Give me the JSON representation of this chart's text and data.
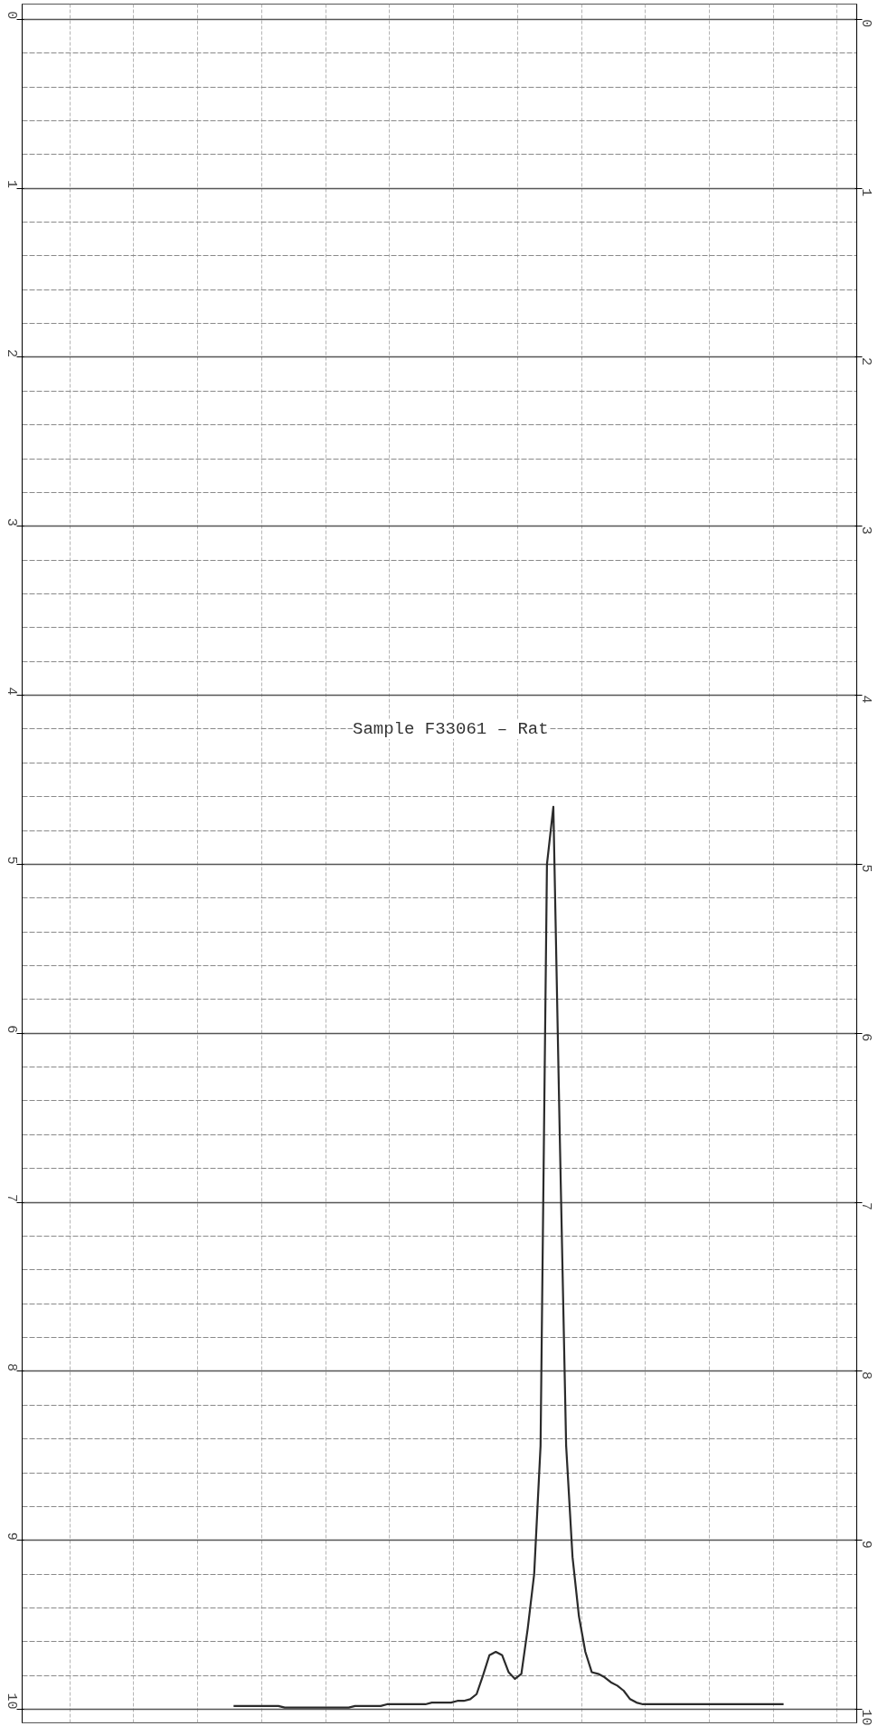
{
  "chart_data": {
    "type": "line",
    "categories": [
      null,
      null,
      null,
      null,
      null,
      null,
      null,
      null,
      null,
      null,
      null,
      null,
      null,
      null,
      null,
      null,
      null,
      null,
      null,
      null,
      null,
      null,
      null,
      null,
      null,
      null,
      null,
      null,
      null,
      null,
      null,
      null,
      null,
      null,
      null,
      null,
      null,
      null,
      null,
      null,
      null,
      null,
      null,
      null,
      null,
      null,
      null,
      null,
      null,
      null,
      null,
      null,
      null,
      null,
      null,
      null,
      null,
      null,
      null,
      null,
      null,
      null,
      null,
      null,
      null,
      null,
      null,
      null,
      null,
      null,
      null,
      null,
      null,
      null,
      null,
      null,
      null,
      null,
      null,
      null,
      null,
      null,
      null,
      null,
      null,
      null,
      null
    ],
    "series": [
      {
        "color": "#2b2b2b",
        "values": [
          9.98,
          9.98,
          9.98,
          9.98,
          9.98,
          9.98,
          9.98,
          9.98,
          9.99,
          9.99,
          9.99,
          9.99,
          9.99,
          9.99,
          9.99,
          9.99,
          9.99,
          9.99,
          9.99,
          9.98,
          9.98,
          9.98,
          9.98,
          9.98,
          9.97,
          9.97,
          9.97,
          9.97,
          9.97,
          9.97,
          9.97,
          9.96,
          9.96,
          9.96,
          9.96,
          9.95,
          9.95,
          9.94,
          9.91,
          9.8,
          9.68,
          9.66,
          9.68,
          9.78,
          9.82,
          9.79,
          9.52,
          9.2,
          8.44,
          5.0,
          4.66,
          6.6,
          8.44,
          9.1,
          9.45,
          9.66,
          9.78,
          9.79,
          9.81,
          9.84,
          9.86,
          9.89,
          9.94,
          9.96,
          9.97,
          9.97,
          9.97,
          9.97,
          9.97,
          9.97,
          9.97,
          9.97,
          9.97,
          9.97,
          9.97,
          9.97,
          9.97,
          9.97,
          9.97,
          9.97,
          9.97,
          9.97,
          9.97,
          9.97,
          9.97,
          9.97,
          9.97
        ]
      }
    ],
    "ylim": [
      10.08,
      -0.09
    ],
    "yticks": [
      0,
      1,
      2,
      3,
      4,
      5,
      6,
      7,
      8,
      9,
      10
    ],
    "y2lim": [
      10.08,
      -0.09
    ],
    "y2ticks": [
      0,
      1,
      2,
      3,
      4,
      5,
      6,
      7,
      8,
      9,
      10
    ],
    "tick_labels": "y",
    "grid": true,
    "marker": "none",
    "line_style": "solid",
    "annotations": [
      "Sample F33061 – Rat"
    ]
  }
}
